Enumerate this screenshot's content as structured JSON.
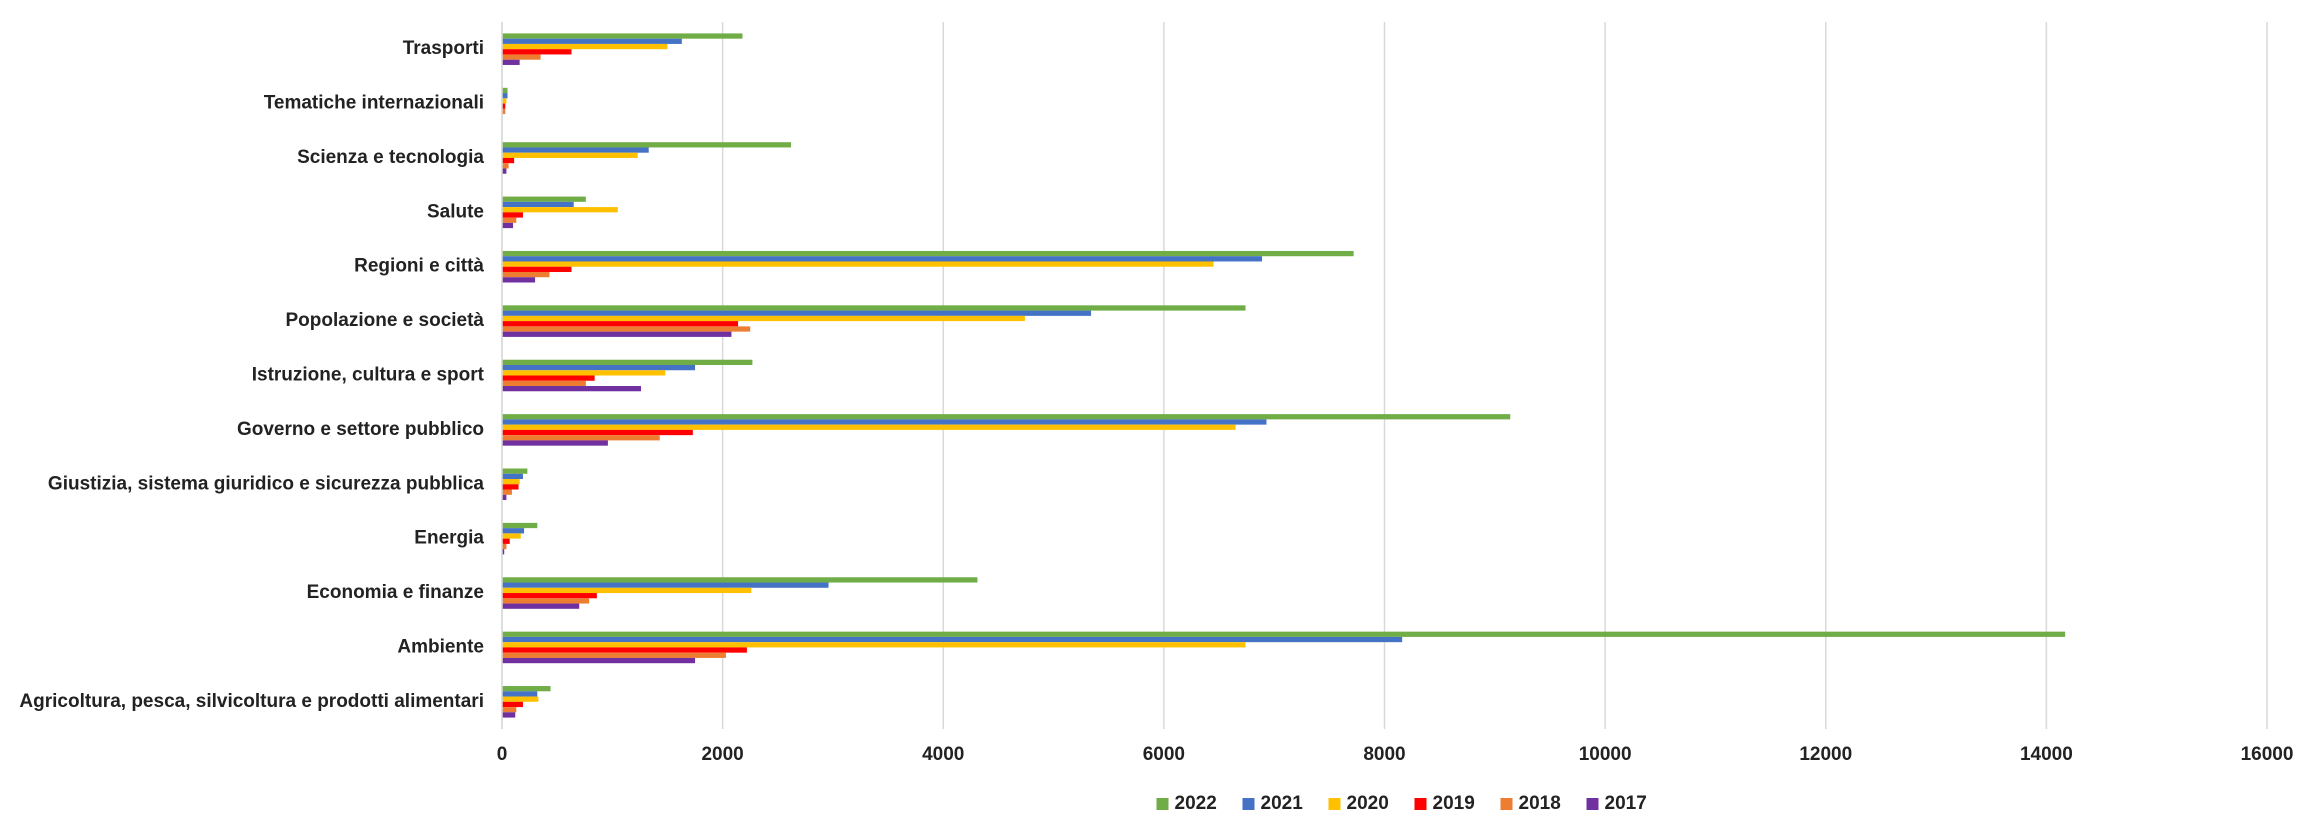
{
  "chart_data": {
    "type": "bar",
    "orientation": "horizontal",
    "categories": [
      "Agricoltura, pesca, silvicoltura e prodotti alimentari",
      "Ambiente",
      "Economia e finanze",
      "Energia",
      "Giustizia, sistema giuridico e sicurezza pubblica",
      "Governo e settore pubblico",
      "Istruzione, cultura e sport",
      "Popolazione e società",
      "Regioni e città",
      "Salute",
      "Scienza e tecnologia",
      "Tematiche internazionali",
      "Trasporti"
    ],
    "series": [
      {
        "name": "2022",
        "color": "#70ad47",
        "values": [
          440,
          14170,
          4310,
          320,
          230,
          9140,
          2270,
          6740,
          7720,
          760,
          2620,
          50,
          2180
        ]
      },
      {
        "name": "2021",
        "color": "#4472c4",
        "values": [
          320,
          8160,
          2960,
          200,
          190,
          6930,
          1750,
          5340,
          6890,
          650,
          1330,
          50,
          1630
        ]
      },
      {
        "name": "2020",
        "color": "#ffc000",
        "values": [
          330,
          6740,
          2260,
          170,
          160,
          6650,
          1480,
          4740,
          6450,
          1050,
          1230,
          40,
          1500
        ]
      },
      {
        "name": "2019",
        "color": "#ff0000",
        "values": [
          190,
          2220,
          860,
          70,
          150,
          1730,
          840,
          2140,
          630,
          190,
          110,
          30,
          630
        ]
      },
      {
        "name": "2018",
        "color": "#ed7d31",
        "values": [
          130,
          2030,
          790,
          40,
          90,
          1430,
          760,
          2250,
          430,
          130,
          60,
          30,
          350
        ]
      },
      {
        "name": "2017",
        "color": "#7030a0",
        "values": [
          120,
          1750,
          700,
          20,
          40,
          960,
          1260,
          2080,
          300,
          100,
          40,
          5,
          160
        ]
      }
    ],
    "xlim": [
      0,
      16000
    ],
    "xticks": [
      0,
      2000,
      4000,
      6000,
      8000,
      10000,
      12000,
      14000,
      16000
    ],
    "grid": true,
    "legend": "bottom"
  }
}
